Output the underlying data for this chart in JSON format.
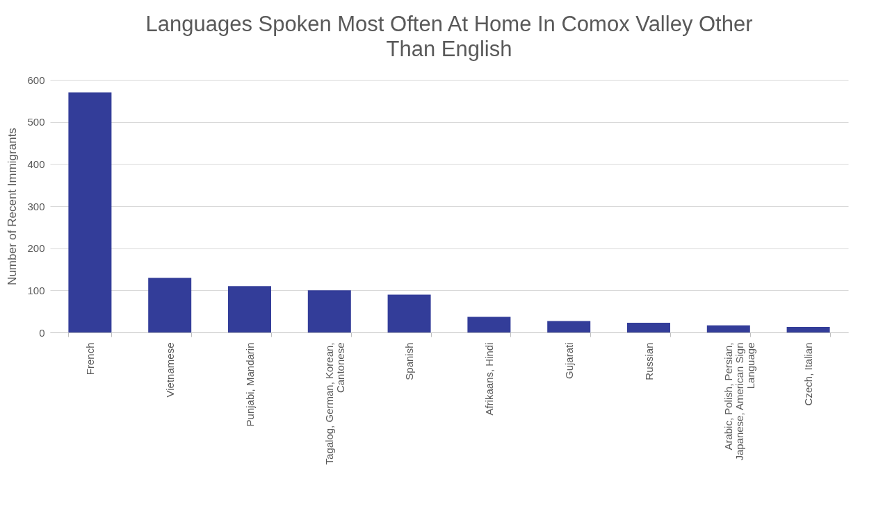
{
  "chart_data": {
    "type": "bar",
    "title": "Languages Spoken Most Often At Home In Comox Valley Other Than English",
    "ylabel": "Number of Recent Immigrants",
    "categories": [
      "French",
      "Vietnamese",
      "Punjabi, Mandarin",
      "Tagalog, German, Korean, Cantonese",
      "Spanish",
      "Afrikaans, Hindi",
      "Gujarati",
      "Russian",
      "Arabic, Polish, Persian, Japanese, American Sign Language",
      "Czech, Italian"
    ],
    "values": [
      570,
      130,
      110,
      100,
      90,
      37,
      27,
      23,
      17,
      13
    ],
    "color": "#333d99",
    "ylim": [
      0,
      600
    ],
    "yticks": [
      0,
      100,
      200,
      300,
      400,
      500,
      600
    ],
    "grid": "y"
  }
}
